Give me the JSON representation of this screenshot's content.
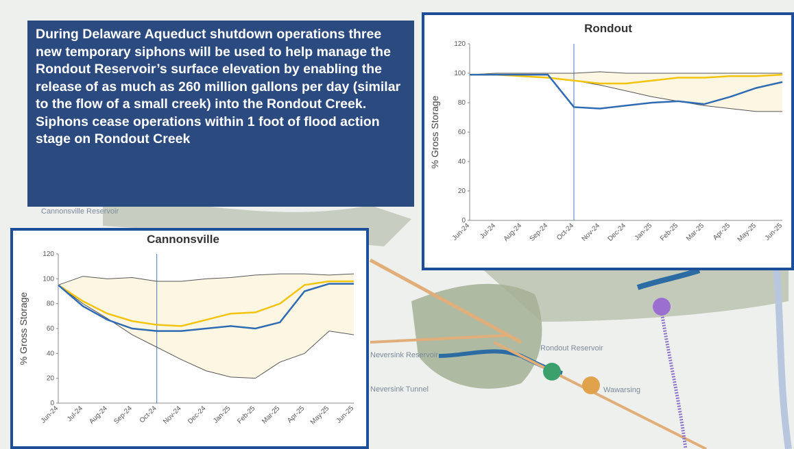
{
  "text": "During Delaware Aqueduct shutdown operations three new temporary siphons will be used to help manage the Rondout Reservoir’s surface elevation by enabling the release of as much as 260 million gallons per day (similar to the flow of a small creek) into the Rondout Creek. Siphons cease operations within 1 foot of flood action stage on Rondout Creek",
  "map": {
    "labels": [
      "Cannonsville Reservoir",
      "Neversink Reservoir",
      "Neversink Tunnel",
      "Rondout Reservoir",
      "Wawarsing"
    ]
  },
  "chart_data": [
    {
      "type": "line",
      "title": "Rondout",
      "y_label": "% Gross Storage",
      "categories": [
        "Jun-24",
        "Jul-24",
        "Aug-24",
        "Sep-24",
        "Oct-24",
        "Nov-24",
        "Dec-24",
        "Jan-25",
        "Feb-25",
        "Mar-25",
        "Apr-25",
        "May-25",
        "Jun-25"
      ],
      "ylim": [
        0,
        120
      ],
      "yticks": [
        0,
        20,
        40,
        60,
        80,
        100,
        120
      ],
      "marker_x": "Oct-24",
      "fill_between": true,
      "series": [
        {
          "color": "#555555",
          "values": [
            99,
            100,
            100,
            100,
            100,
            101,
            100,
            100,
            100,
            100,
            100,
            100,
            100
          ]
        },
        {
          "color": "#555555",
          "values": [
            99,
            99,
            98,
            97,
            95,
            92,
            88,
            84,
            81,
            78,
            76,
            74,
            74
          ]
        },
        {
          "color": "#f2c40f",
          "values": [
            99,
            99,
            98,
            97,
            95,
            93,
            93,
            95,
            97,
            97,
            98,
            98,
            99
          ]
        },
        {
          "color": "#2f6bb3",
          "values": [
            99,
            99,
            99,
            99,
            77,
            76,
            78,
            80,
            81,
            79,
            84,
            90,
            94
          ]
        }
      ]
    },
    {
      "type": "line",
      "title": "Cannonsville",
      "y_label": "% Gross Storage",
      "categories": [
        "Jun-24",
        "Jul-24",
        "Aug-24",
        "Sep-24",
        "Oct-24",
        "Nov-24",
        "Dec-24",
        "Jan-25",
        "Feb-25",
        "Mar-25",
        "Apr-25",
        "May-25",
        "Jun-25"
      ],
      "ylim": [
        0,
        120
      ],
      "yticks": [
        0,
        20,
        40,
        60,
        80,
        100,
        120
      ],
      "marker_x": "Oct-24",
      "fill_between": true,
      "series": [
        {
          "color": "#555555",
          "values": [
            95,
            102,
            100,
            101,
            98,
            98,
            100,
            101,
            103,
            104,
            104,
            103,
            104
          ]
        },
        {
          "color": "#555555",
          "values": [
            95,
            80,
            68,
            55,
            45,
            35,
            26,
            21,
            20,
            33,
            40,
            58,
            55
          ]
        },
        {
          "color": "#f2c40f",
          "values": [
            95,
            82,
            72,
            66,
            63,
            62,
            67,
            72,
            73,
            80,
            95,
            98,
            98
          ]
        },
        {
          "color": "#2f6bb3",
          "values": [
            95,
            78,
            67,
            60,
            58,
            58,
            60,
            62,
            60,
            65,
            90,
            96,
            96
          ]
        }
      ]
    }
  ]
}
